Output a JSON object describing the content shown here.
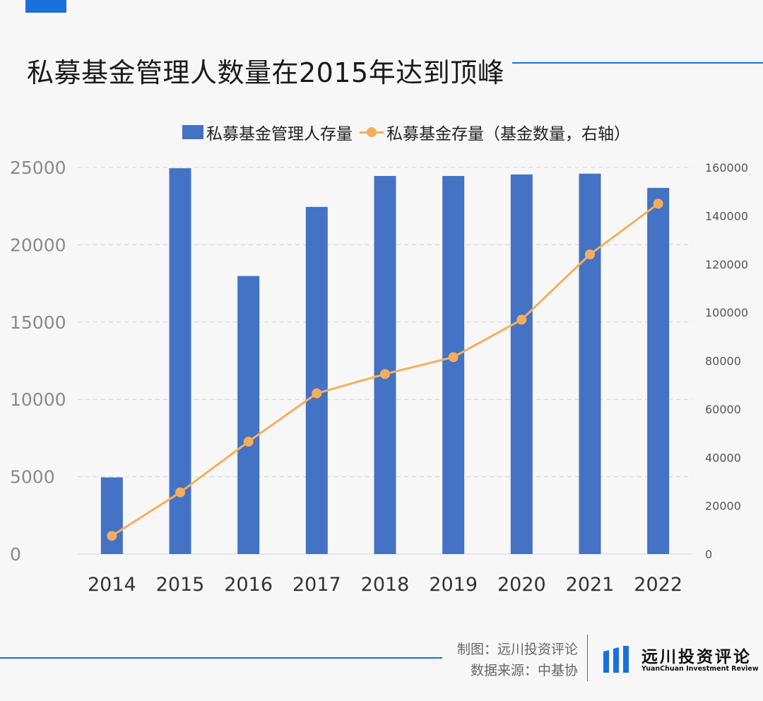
{
  "title": "私募基金管理人数量在2015年达到顶峰",
  "legend": {
    "bar_label": "私募基金管理人存量",
    "line_label": "私募基金存量（基金数量，右轴）"
  },
  "footer": {
    "credit_line1": "制图：远川投资评论",
    "credit_line2": "数据来源：中基协",
    "logo_cn": "远川投资评论",
    "logo_en": "YuanChuan Investment Review"
  },
  "colors": {
    "accent": "#1a6fdf",
    "bar": "#4472c4",
    "line": "#f6ae5c"
  },
  "chart_data": {
    "type": "bar",
    "categories": [
      "2014",
      "2015",
      "2016",
      "2017",
      "2018",
      "2019",
      "2020",
      "2021",
      "2022"
    ],
    "series": [
      {
        "name": "私募基金管理人存量",
        "type": "bar",
        "axis": "left",
        "values": [
          4955,
          24950,
          17980,
          22450,
          24450,
          24450,
          24550,
          24600,
          23680
        ]
      },
      {
        "name": "私募基金存量（基金数量，右轴）",
        "type": "line",
        "axis": "right",
        "values": [
          7500,
          25500,
          46500,
          66500,
          74500,
          81500,
          97000,
          124000,
          145000
        ]
      }
    ],
    "ylim_left": [
      0,
      25000
    ],
    "yticks_left": [
      "0",
      "5000",
      "10000",
      "15000",
      "20000",
      "25000"
    ],
    "ylim_right": [
      0,
      160000
    ],
    "yticks_right": [
      "0",
      "20000",
      "40000",
      "60000",
      "80000",
      "100000",
      "120000",
      "140000",
      "160000"
    ],
    "grid": true,
    "legend_position": "top"
  }
}
